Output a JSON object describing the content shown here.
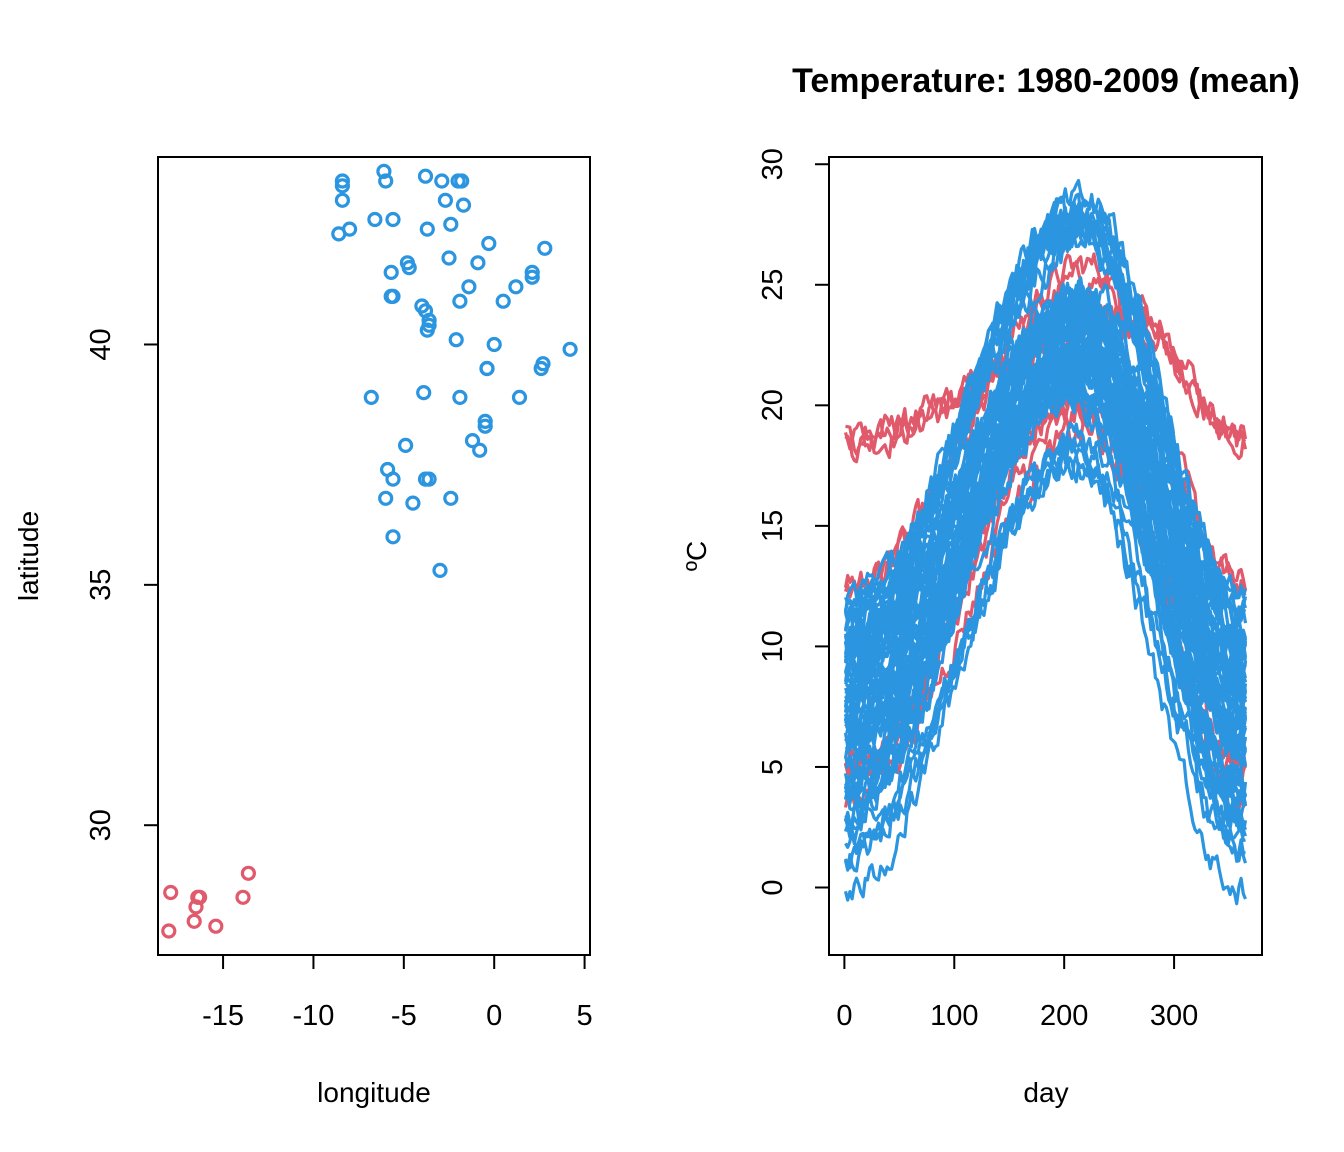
{
  "chart_data": [
    {
      "type": "scatter",
      "title": "",
      "xlabel": "longitude",
      "ylabel": "latitude",
      "xlim": [
        -18.6,
        5.3
      ],
      "ylim": [
        27.3,
        43.9
      ],
      "xticks": [
        -15,
        -10,
        -5,
        0,
        5
      ],
      "xtick_labels": [
        "-15",
        "-10",
        "-5",
        "0",
        "5"
      ],
      "yticks": [
        30,
        35,
        40
      ],
      "ytick_labels": [
        "30",
        "35",
        "40"
      ],
      "marker": "open-circle",
      "series": [
        {
          "color": "#e05a6c",
          "points": [
            [
              -17.9,
              28.6
            ],
            [
              -18.0,
              27.8
            ],
            [
              -16.4,
              28.5
            ],
            [
              -16.5,
              28.3
            ],
            [
              -16.6,
              28.0
            ],
            [
              -15.4,
              27.9
            ],
            [
              -13.6,
              29.0
            ],
            [
              -13.9,
              28.5
            ],
            [
              -16.3,
              28.5
            ]
          ]
        },
        {
          "color": "#2b95e0",
          "points": [
            [
              -8.4,
              43.4
            ],
            [
              -8.4,
              43.3
            ],
            [
              -8.4,
              43.0
            ],
            [
              -6.1,
              43.6
            ],
            [
              -6.0,
              43.4
            ],
            [
              -3.8,
              43.5
            ],
            [
              -2.9,
              43.4
            ],
            [
              -2.0,
              43.4
            ],
            [
              -1.8,
              43.4
            ],
            [
              -2.7,
              43.0
            ],
            [
              -1.7,
              42.9
            ],
            [
              -6.6,
              42.6
            ],
            [
              -5.6,
              42.6
            ],
            [
              -8.6,
              42.3
            ],
            [
              -8.0,
              42.4
            ],
            [
              -3.7,
              42.4
            ],
            [
              -2.4,
              42.5
            ],
            [
              -0.3,
              42.1
            ],
            [
              2.8,
              42.0
            ],
            [
              -4.8,
              41.7
            ],
            [
              -4.7,
              41.6
            ],
            [
              -2.5,
              41.8
            ],
            [
              -0.9,
              41.7
            ],
            [
              -5.7,
              41.5
            ],
            [
              2.1,
              41.5
            ],
            [
              2.1,
              41.4
            ],
            [
              -5.6,
              41.0
            ],
            [
              -5.7,
              41.0
            ],
            [
              -1.4,
              41.2
            ],
            [
              1.2,
              41.2
            ],
            [
              -1.9,
              40.9
            ],
            [
              0.5,
              40.9
            ],
            [
              -4.0,
              40.8
            ],
            [
              -3.8,
              40.7
            ],
            [
              -3.6,
              40.5
            ],
            [
              -3.6,
              40.4
            ],
            [
              -3.7,
              40.3
            ],
            [
              -2.1,
              40.1
            ],
            [
              0.0,
              40.0
            ],
            [
              -0.4,
              39.5
            ],
            [
              -0.4,
              39.5
            ],
            [
              2.6,
              39.5
            ],
            [
              2.7,
              39.6
            ],
            [
              4.2,
              39.9
            ],
            [
              -6.8,
              38.9
            ],
            [
              -3.9,
              39.0
            ],
            [
              -1.9,
              38.9
            ],
            [
              1.4,
              38.9
            ],
            [
              -0.5,
              38.3
            ],
            [
              -0.5,
              38.4
            ],
            [
              -1.2,
              38.0
            ],
            [
              -0.8,
              37.8
            ],
            [
              -4.9,
              37.9
            ],
            [
              -5.9,
              37.4
            ],
            [
              -5.6,
              37.2
            ],
            [
              -3.8,
              37.2
            ],
            [
              -3.6,
              37.2
            ],
            [
              -6.0,
              36.8
            ],
            [
              -4.5,
              36.7
            ],
            [
              -2.4,
              36.8
            ],
            [
              -5.6,
              36.0
            ],
            [
              -3.0,
              35.3
            ]
          ]
        }
      ]
    },
    {
      "type": "line",
      "title": "Temperature: 1980-2009 (mean)",
      "xlabel": "day",
      "ylabel": "ºC",
      "xlim": [
        -14,
        380
      ],
      "ylim": [
        -2.8,
        30.3
      ],
      "xticks": [
        0,
        100,
        200,
        300
      ],
      "xtick_labels": [
        "0",
        "100",
        "200",
        "300"
      ],
      "yticks": [
        0,
        5,
        10,
        15,
        20,
        25,
        30
      ],
      "ytick_labels": [
        "0",
        "5",
        "10",
        "15",
        "20",
        "25",
        "30"
      ],
      "x_domain": [
        1,
        365
      ],
      "series_description": "daily mean temperature per station, 70+ stations",
      "series": [
        {
          "color": "#e05a6c",
          "winter": 18.4,
          "summer": 23.6,
          "peak_day": 260,
          "count": 3
        },
        {
          "color": "#e05a6c",
          "winter": 13.0,
          "summer": 25.5,
          "peak_day": 230,
          "count": 2
        },
        {
          "color": "#e05a6c",
          "winter": 5.0,
          "summer": 20.0,
          "peak_day": 215,
          "count": 3
        },
        {
          "color": "#e05a6c",
          "winter": 3.5,
          "summer": 19.0,
          "peak_day": 215,
          "count": 1
        },
        {
          "color": "#2b95e0",
          "winter": 11.0,
          "summer": 27.5,
          "peak_day": 215,
          "count": 12
        },
        {
          "color": "#2b95e0",
          "winter": 9.0,
          "summer": 24.0,
          "peak_day": 215,
          "count": 18
        },
        {
          "color": "#2b95e0",
          "winter": 6.5,
          "summer": 22.0,
          "peak_day": 215,
          "count": 18
        },
        {
          "color": "#2b95e0",
          "winter": 4.0,
          "summer": 21.0,
          "peak_day": 210,
          "count": 12
        },
        {
          "color": "#2b95e0",
          "winter": 2.5,
          "summer": 18.5,
          "peak_day": 210,
          "count": 4
        },
        {
          "color": "#2b95e0",
          "winter": -0.8,
          "summer": 17.5,
          "peak_day": 205,
          "count": 1
        }
      ]
    }
  ]
}
